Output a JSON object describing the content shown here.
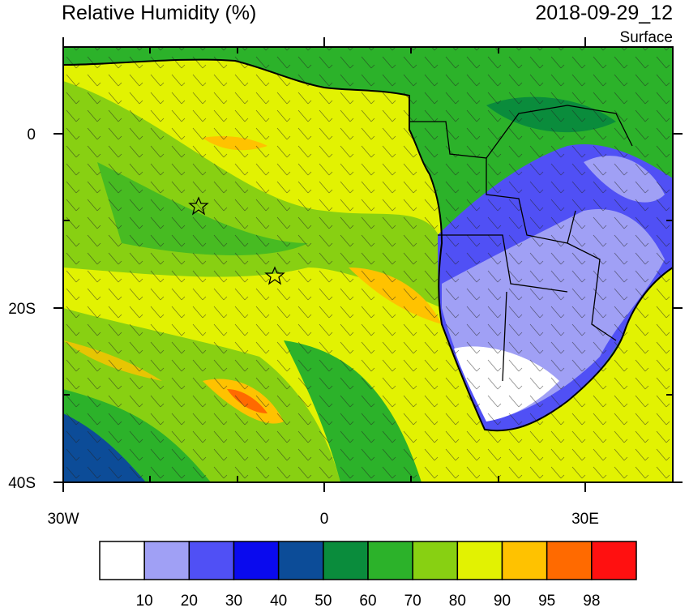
{
  "title": "Relative Humidity (%)",
  "datetime": "2018-09-29_12",
  "level": "Surface",
  "y_axis_labels": [
    "0",
    "20S",
    "40S"
  ],
  "x_axis_labels": [
    "30W",
    "0",
    "30E"
  ],
  "colorbar": {
    "colors": [
      "#ffffff",
      "#a0a0f5",
      "#5050f5",
      "#0a0aee",
      "#0c4c98",
      "#0a8c3c",
      "#2cb22a",
      "#88d012",
      "#e2f202",
      "#ffc200",
      "#ff6a00",
      "#ff1010"
    ],
    "labels": [
      10,
      20,
      30,
      40,
      50,
      60,
      70,
      80,
      90,
      95,
      98
    ]
  }
}
